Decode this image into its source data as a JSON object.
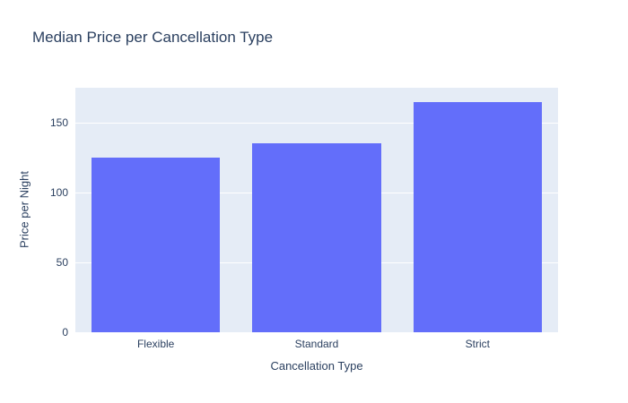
{
  "chart_data": {
    "type": "bar",
    "title": "Median Price per Cancellation Type",
    "categories": [
      "Flexible",
      "Standard",
      "Strict"
    ],
    "values": [
      125,
      135,
      165
    ],
    "xlabel": "Cancellation Type",
    "ylabel": "Price per Night",
    "ylim": [
      0,
      175
    ],
    "yticks": [
      0,
      50,
      100,
      150
    ],
    "grid": true,
    "legend": "none",
    "colors": {
      "bar": "#636efa",
      "plot_bg": "#e5ecf6",
      "grid": "#ffffff",
      "text": "#2a3f5f",
      "page_bg": "#ffffff"
    }
  }
}
